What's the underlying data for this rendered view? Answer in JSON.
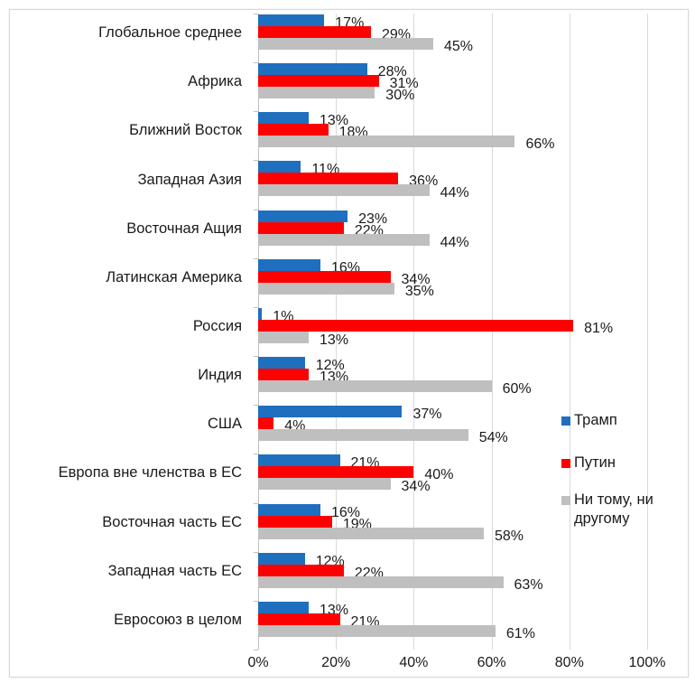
{
  "chart_data": {
    "type": "bar",
    "orientation": "horizontal",
    "title": "",
    "xlabel": "",
    "ylabel": "",
    "xlim": [
      0,
      100
    ],
    "x_ticks": [
      "0%",
      "20%",
      "40%",
      "60%",
      "80%",
      "100%"
    ],
    "grid": true,
    "legend_position": "right",
    "categories": [
      "Глобальное среднее",
      "Африка",
      "Ближний Восток",
      "Западная Азия",
      "Восточная Ащия",
      "Латинская Америка",
      "Россия",
      "Индия",
      "США",
      "Европа вне членства в ЕС",
      "Восточная часть ЕС",
      "Западная  часть ЕС",
      "Евросоюз в целом"
    ],
    "series": [
      {
        "name": "Трамп",
        "color": "#1f6fbf",
        "values": [
          17,
          28,
          13,
          11,
          23,
          16,
          1,
          12,
          37,
          21,
          16,
          12,
          13
        ]
      },
      {
        "name": "Путин",
        "color": "#ff0000",
        "values": [
          29,
          31,
          18,
          36,
          22,
          34,
          81,
          13,
          4,
          40,
          19,
          22,
          21
        ]
      },
      {
        "name": "Ни тому, ни другому",
        "color": "#bfbfbf",
        "values": [
          45,
          30,
          66,
          44,
          44,
          35,
          13,
          60,
          54,
          34,
          58,
          63,
          61
        ]
      }
    ]
  },
  "legend": {
    "items": [
      {
        "label": "Трамп",
        "color": "#1f6fbf"
      },
      {
        "label": "Путин",
        "color": "#ff0000"
      },
      {
        "label_line1": "Ни тому, ни",
        "label_line2": "другому",
        "color": "#bfbfbf"
      }
    ]
  }
}
